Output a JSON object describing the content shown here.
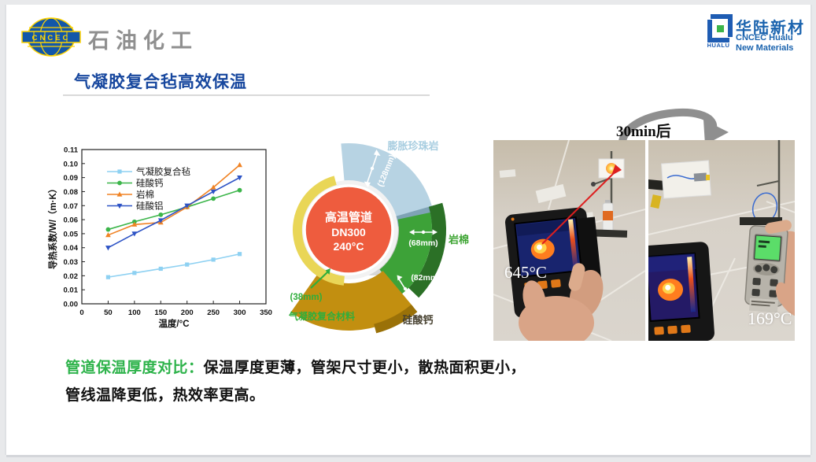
{
  "header": {
    "cncec_text": "CNCEC",
    "division": "石油化工",
    "hualu": {
      "mark_text": "HUALU",
      "name_cn": "华陆新材",
      "name_en1": "CNCEC Hualu",
      "name_en2": "New Materials"
    }
  },
  "title": "气凝胶复合毡高效保温",
  "chart_data": {
    "type": "line",
    "title": "",
    "xlabel": "温度/°C",
    "ylabel": "导热系数/W/（m·K）",
    "x": [
      50,
      100,
      150,
      200,
      250,
      300
    ],
    "xlim": [
      0,
      350
    ],
    "ylim": [
      0,
      0.11
    ],
    "xticks": [
      0,
      50,
      100,
      150,
      200,
      250,
      300,
      350
    ],
    "yticks": [
      "0.00",
      "0.01",
      "0.02",
      "0.03",
      "0.04",
      "0.05",
      "0.06",
      "0.07",
      "0.08",
      "0.09",
      "0.10",
      "0.11"
    ],
    "grid": false,
    "legend_position": "upper-left",
    "series": [
      {
        "name": "气凝胶复合毡",
        "marker": "square",
        "color": "#8ed1f2",
        "values": [
          0.019,
          0.022,
          0.025,
          0.028,
          0.0315,
          0.0355
        ]
      },
      {
        "name": "硅酸钙",
        "marker": "circle",
        "color": "#3cb54a",
        "values": [
          0.053,
          0.0585,
          0.0635,
          0.069,
          0.075,
          0.081
        ]
      },
      {
        "name": "岩棉",
        "marker": "triangle-up",
        "color": "#f08223",
        "values": [
          0.049,
          0.0565,
          0.058,
          0.069,
          0.083,
          0.099
        ]
      },
      {
        "name": "硅酸铝",
        "marker": "triangle-down",
        "color": "#2d53c5",
        "values": [
          0.04,
          0.05,
          0.0595,
          0.07,
          0.08,
          0.09
        ]
      }
    ]
  },
  "diagram": {
    "pipe_line1": "高温管道",
    "pipe_line2": "DN300",
    "pipe_line3": "240°C",
    "layers": [
      {
        "name": "膨胀珍珠岩",
        "thickness": "(128mm)",
        "color": "#b7d3e3"
      },
      {
        "name": "岩棉",
        "thickness": "(68mm)",
        "color": "#3da238"
      },
      {
        "name": "硅酸钙",
        "thickness": "(82mm)",
        "color": "#c28f10"
      },
      {
        "name": "气凝胶复合材料",
        "thickness": "(38mm)",
        "color": "#e9d657"
      }
    ]
  },
  "photos": {
    "arrow_label": "30min后",
    "before_temp": "645°C",
    "after_temp": "169°C"
  },
  "footer": {
    "highlight": "管道保温厚度对比：",
    "text": "保温厚度更薄，管架尺寸更小，散热面积更小，管线温降更低，热效率更高。"
  },
  "colors": {
    "title_blue": "#17479e",
    "footer_green": "#2eb34b",
    "pipe_red": "#ee5c3e",
    "arrow_gray": "#8f8f8f"
  }
}
